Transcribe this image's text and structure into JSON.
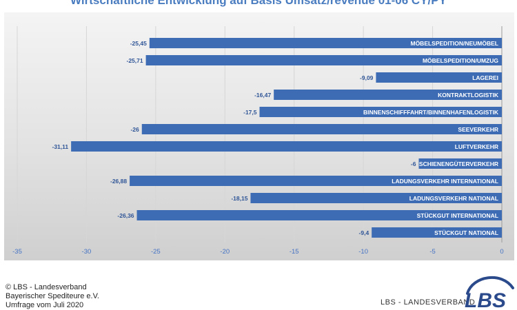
{
  "chart_data": {
    "type": "bar",
    "orientation": "horizontal",
    "title": "Wirtschaftliche Entwicklung auf Basis Umsatz/revenue 01-06 CY/PY",
    "categories": [
      "MÖBELSPEDITION/NEUMÖBEL",
      "MÖBELSPEDITION/UMZUG",
      "LAGEREI",
      "KONTRAKTLOGISTIK",
      "BINNENSCHIFFFAHRT/BINNENHAFENLOGISTIK",
      "SEEVERKEHR",
      "LUFTVERKEHR",
      "SCHIENENGÜTERVERKEHR",
      "LADUNGSVERKEHR INTERNATIONAL",
      "LADUNGSVERKEHR NATIONAL",
      "STÜCKGUT INTERNATIONAL",
      "STÜCKGUT NATIONAL"
    ],
    "values": [
      -25.45,
      -25.71,
      -9.09,
      -16.47,
      -17.5,
      -26,
      -31.11,
      -6,
      -26.88,
      -18.15,
      -26.36,
      -9.4
    ],
    "value_labels": [
      "-25,45",
      "-25,71",
      "-9,09",
      "-16,47",
      "-17,5",
      "-26",
      "-31,11",
      "-6",
      "-26,88",
      "-18,15",
      "-26,36",
      "-9,4"
    ],
    "xlim": [
      -35,
      0
    ],
    "xticks": [
      -35,
      -30,
      -25,
      -20,
      -15,
      -10,
      -5,
      0
    ],
    "xtick_labels": [
      "-35",
      "-30",
      "-25",
      "-20",
      "-15",
      "-10",
      "-5",
      "0"
    ],
    "grid": "vertical",
    "bar_color": "#3d6cb4",
    "label_color": "#2f5597",
    "tick_color": "#4472c4"
  },
  "footer": {
    "copyright_lines": [
      "© LBS - Landesverband",
      "Bayerischer Spediteure e.V.",
      "Umfrage vom Juli 2020"
    ],
    "brand_text": "LBS - LANDESVERBAND",
    "logo_text": "LBS",
    "logo_color": "#2b4a8c"
  }
}
